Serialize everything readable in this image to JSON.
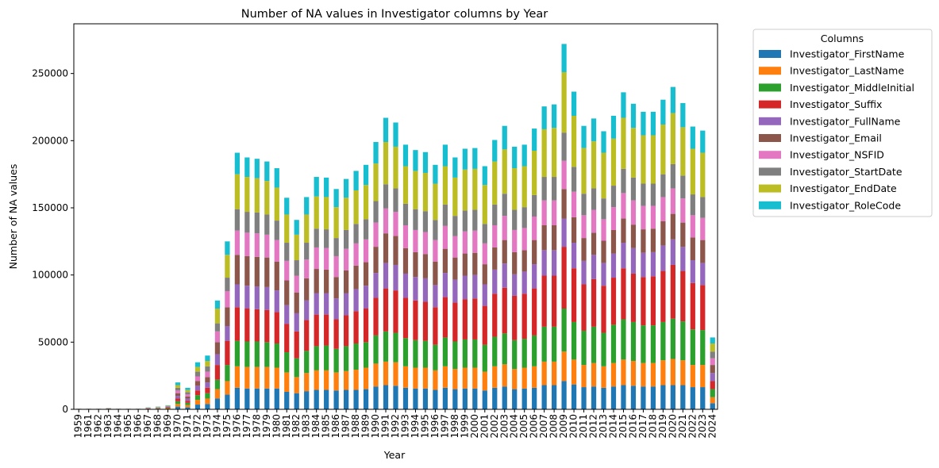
{
  "chart_data": {
    "type": "bar",
    "stacked": true,
    "title": "Number of NA values in Investigator columns by Year",
    "xlabel": "Year",
    "ylabel": "Number of NA values",
    "ylim": [
      0,
      287000
    ],
    "yticks": [
      0,
      50000,
      100000,
      150000,
      200000,
      250000
    ],
    "grid": false,
    "legend": {
      "title": "Columns",
      "placement": "outside-upper-right"
    },
    "categories": [
      "1959",
      "1961",
      "1962",
      "1963",
      "1964",
      "1965",
      "1966",
      "1967",
      "1968",
      "1969",
      "1970",
      "1971",
      "1972",
      "1973",
      "1974",
      "1975",
      "1976",
      "1977",
      "1978",
      "1979",
      "1980",
      "1981",
      "1982",
      "1983",
      "1984",
      "1985",
      "1986",
      "1987",
      "1988",
      "1989",
      "1990",
      "1991",
      "1992",
      "1993",
      "1994",
      "1995",
      "1996",
      "1997",
      "1998",
      "1999",
      "2000",
      "2001",
      "2002",
      "2003",
      "2004",
      "2005",
      "2006",
      "2007",
      "2008",
      "2009",
      "2010",
      "2011",
      "2012",
      "2013",
      "2014",
      "2015",
      "2016",
      "2017",
      "2018",
      "2019",
      "2020",
      "2021",
      "2022",
      "2023",
      "2024"
    ],
    "series": [
      {
        "name": "Investigator_FirstName",
        "color": "#1f77b4",
        "values": [
          50,
          50,
          50,
          100,
          50,
          50,
          50,
          150,
          200,
          300,
          2000,
          1600,
          3500,
          4000,
          8000,
          11000,
          16000,
          15500,
          15500,
          15500,
          15500,
          13000,
          12000,
          13500,
          14500,
          14500,
          14000,
          14500,
          14500,
          15000,
          17000,
          18000,
          17500,
          16000,
          15500,
          15500,
          14500,
          16000,
          15000,
          15500,
          15500,
          14000,
          16000,
          17000,
          15000,
          15500,
          16000,
          18000,
          18000,
          21000,
          18500,
          16500,
          17000,
          16000,
          17000,
          18000,
          17500,
          17000,
          17000,
          18000,
          18000,
          18000,
          16500,
          16500,
          4500
        ]
      },
      {
        "name": "Investigator_LastName",
        "color": "#ff7f0e",
        "values": [
          50,
          50,
          50,
          100,
          50,
          50,
          50,
          150,
          200,
          300,
          2000,
          1600,
          3500,
          4000,
          7000,
          10000,
          16000,
          16000,
          16000,
          16000,
          15500,
          14500,
          12000,
          13500,
          14500,
          14500,
          13500,
          14000,
          15000,
          16000,
          17000,
          17500,
          17500,
          16000,
          15500,
          15500,
          14500,
          16000,
          15000,
          15500,
          15500,
          14000,
          16000,
          16500,
          15000,
          15500,
          16000,
          17500,
          17500,
          22000,
          18500,
          16500,
          17500,
          16000,
          17500,
          19000,
          18500,
          17500,
          17500,
          18500,
          19500,
          18500,
          16500,
          16500,
          4500
        ]
      },
      {
        "name": "Investigator_MiddleInitial",
        "color": "#2ca02c",
        "values": [
          50,
          50,
          50,
          100,
          50,
          50,
          50,
          150,
          200,
          300,
          2000,
          1600,
          3500,
          4000,
          7000,
          12000,
          19000,
          19000,
          19000,
          18500,
          18000,
          15000,
          14000,
          16500,
          18000,
          18500,
          17500,
          18500,
          19500,
          19000,
          21000,
          22500,
          22000,
          21000,
          20500,
          20000,
          19000,
          21500,
          20500,
          21000,
          21000,
          20000,
          22000,
          23000,
          21500,
          21500,
          23000,
          26000,
          26000,
          32000,
          28000,
          25500,
          27000,
          25000,
          28500,
          30000,
          29000,
          28000,
          28000,
          28500,
          30000,
          29000,
          26500,
          26000,
          6000
        ]
      },
      {
        "name": "Investigator_Suffix",
        "color": "#d62728",
        "values": [
          50,
          50,
          50,
          100,
          50,
          50,
          50,
          150,
          200,
          300,
          2000,
          1600,
          3500,
          4000,
          11000,
          18000,
          25000,
          24500,
          24000,
          24000,
          23500,
          21000,
          20000,
          23000,
          23500,
          23000,
          22000,
          23000,
          24000,
          25000,
          28000,
          32000,
          31500,
          30000,
          29500,
          29000,
          28000,
          30000,
          29000,
          30000,
          30500,
          29000,
          32000,
          34000,
          33000,
          33500,
          35000,
          38000,
          38000,
          46000,
          40000,
          34500,
          35500,
          35000,
          35000,
          38000,
          36000,
          36000,
          36500,
          38000,
          40000,
          37500,
          34500,
          33500,
          6000
        ]
      },
      {
        "name": "Investigator_FullName",
        "color": "#9467bd",
        "values": [
          50,
          50,
          50,
          100,
          50,
          50,
          50,
          150,
          200,
          300,
          2000,
          1600,
          3500,
          4000,
          8000,
          11000,
          17000,
          17000,
          17000,
          17000,
          16000,
          14000,
          13500,
          14500,
          16000,
          16000,
          15500,
          16500,
          16500,
          17000,
          18500,
          19000,
          19000,
          18000,
          17500,
          17500,
          16500,
          18000,
          17000,
          17500,
          17500,
          16000,
          18000,
          18000,
          16000,
          16500,
          18000,
          19000,
          19000,
          21000,
          19000,
          17500,
          18000,
          17000,
          18000,
          19000,
          19000,
          18000,
          18000,
          19000,
          19000,
          18000,
          17000,
          16500,
          6000
        ]
      },
      {
        "name": "Investigator_Email",
        "color": "#8c564b",
        "values": [
          50,
          50,
          50,
          100,
          50,
          50,
          50,
          150,
          200,
          300,
          2000,
          1600,
          3500,
          4000,
          9000,
          14000,
          22000,
          22000,
          22000,
          22000,
          21500,
          18500,
          15500,
          16500,
          18000,
          17500,
          16000,
          17000,
          17500,
          17500,
          19500,
          22000,
          21500,
          19000,
          18500,
          18000,
          17500,
          18000,
          16500,
          16500,
          16500,
          15000,
          16500,
          17500,
          16500,
          16000,
          18000,
          18500,
          18500,
          22000,
          19000,
          17000,
          16500,
          16500,
          17500,
          18000,
          17500,
          17500,
          17500,
          18000,
          19000,
          18000,
          17000,
          17000,
          6000
        ]
      },
      {
        "name": "Investigator_NSFID",
        "color": "#e377c2",
        "values": [
          50,
          50,
          50,
          100,
          50,
          50,
          50,
          150,
          200,
          300,
          2000,
          1600,
          3500,
          4000,
          8000,
          12000,
          18000,
          17500,
          17500,
          17000,
          16000,
          14500,
          12500,
          14000,
          16000,
          16000,
          15500,
          16000,
          16500,
          17000,
          18000,
          18500,
          18000,
          17000,
          16500,
          16500,
          16000,
          17000,
          16000,
          16500,
          16500,
          15500,
          16500,
          18000,
          16500,
          16500,
          17500,
          18500,
          18500,
          21000,
          19000,
          17000,
          17000,
          16000,
          17000,
          19000,
          18000,
          17500,
          17000,
          18000,
          19000,
          18000,
          16500,
          16500,
          5000
        ]
      },
      {
        "name": "Investigator_StartDate",
        "color": "#7f7f7f",
        "values": [
          50,
          50,
          50,
          100,
          50,
          50,
          50,
          150,
          200,
          300,
          2000,
          1600,
          3500,
          4000,
          6000,
          10000,
          16000,
          15500,
          15500,
          15000,
          14500,
          13500,
          11500,
          12500,
          14000,
          14000,
          13500,
          14000,
          14500,
          15000,
          16000,
          18000,
          17500,
          16000,
          15500,
          15500,
          15000,
          16000,
          15000,
          15500,
          15500,
          14500,
          15500,
          16500,
          15000,
          15500,
          16000,
          17500,
          17500,
          21000,
          18500,
          16000,
          16000,
          15500,
          16000,
          18000,
          17000,
          16500,
          16500,
          17000,
          18000,
          17000,
          15500,
          15500,
          5000
        ]
      },
      {
        "name": "Investigator_EndDate",
        "color": "#bcbd22",
        "values": [
          50,
          50,
          50,
          100,
          50,
          50,
          50,
          150,
          200,
          300,
          2000,
          1600,
          3500,
          4000,
          11000,
          17000,
          26000,
          26000,
          25500,
          25000,
          24500,
          21000,
          19000,
          21000,
          24000,
          24000,
          23000,
          24000,
          25000,
          25500,
          28000,
          31500,
          31000,
          28000,
          28500,
          28500,
          27000,
          28500,
          28500,
          30500,
          30500,
          29000,
          32000,
          33000,
          31000,
          30500,
          33000,
          35500,
          36500,
          45000,
          38000,
          34000,
          35000,
          34000,
          35000,
          38000,
          37000,
          36000,
          36000,
          37000,
          38000,
          36000,
          34000,
          33000,
          6000
        ]
      },
      {
        "name": "Investigator_RoleCode",
        "color": "#17becf",
        "values": [
          50,
          50,
          50,
          100,
          50,
          50,
          50,
          150,
          200,
          300,
          2000,
          1600,
          3500,
          4000,
          6000,
          10000,
          16000,
          14500,
          14500,
          14500,
          14500,
          12500,
          11000,
          13000,
          14500,
          14500,
          13500,
          14000,
          14500,
          15000,
          16000,
          18000,
          18000,
          16000,
          15500,
          15500,
          14000,
          16000,
          15000,
          15500,
          15500,
          14000,
          16000,
          17500,
          16000,
          16000,
          16500,
          17000,
          17500,
          21000,
          18000,
          16500,
          17000,
          16000,
          17000,
          19000,
          18000,
          17500,
          17500,
          18500,
          19500,
          18000,
          16500,
          16500,
          4500
        ]
      }
    ]
  }
}
